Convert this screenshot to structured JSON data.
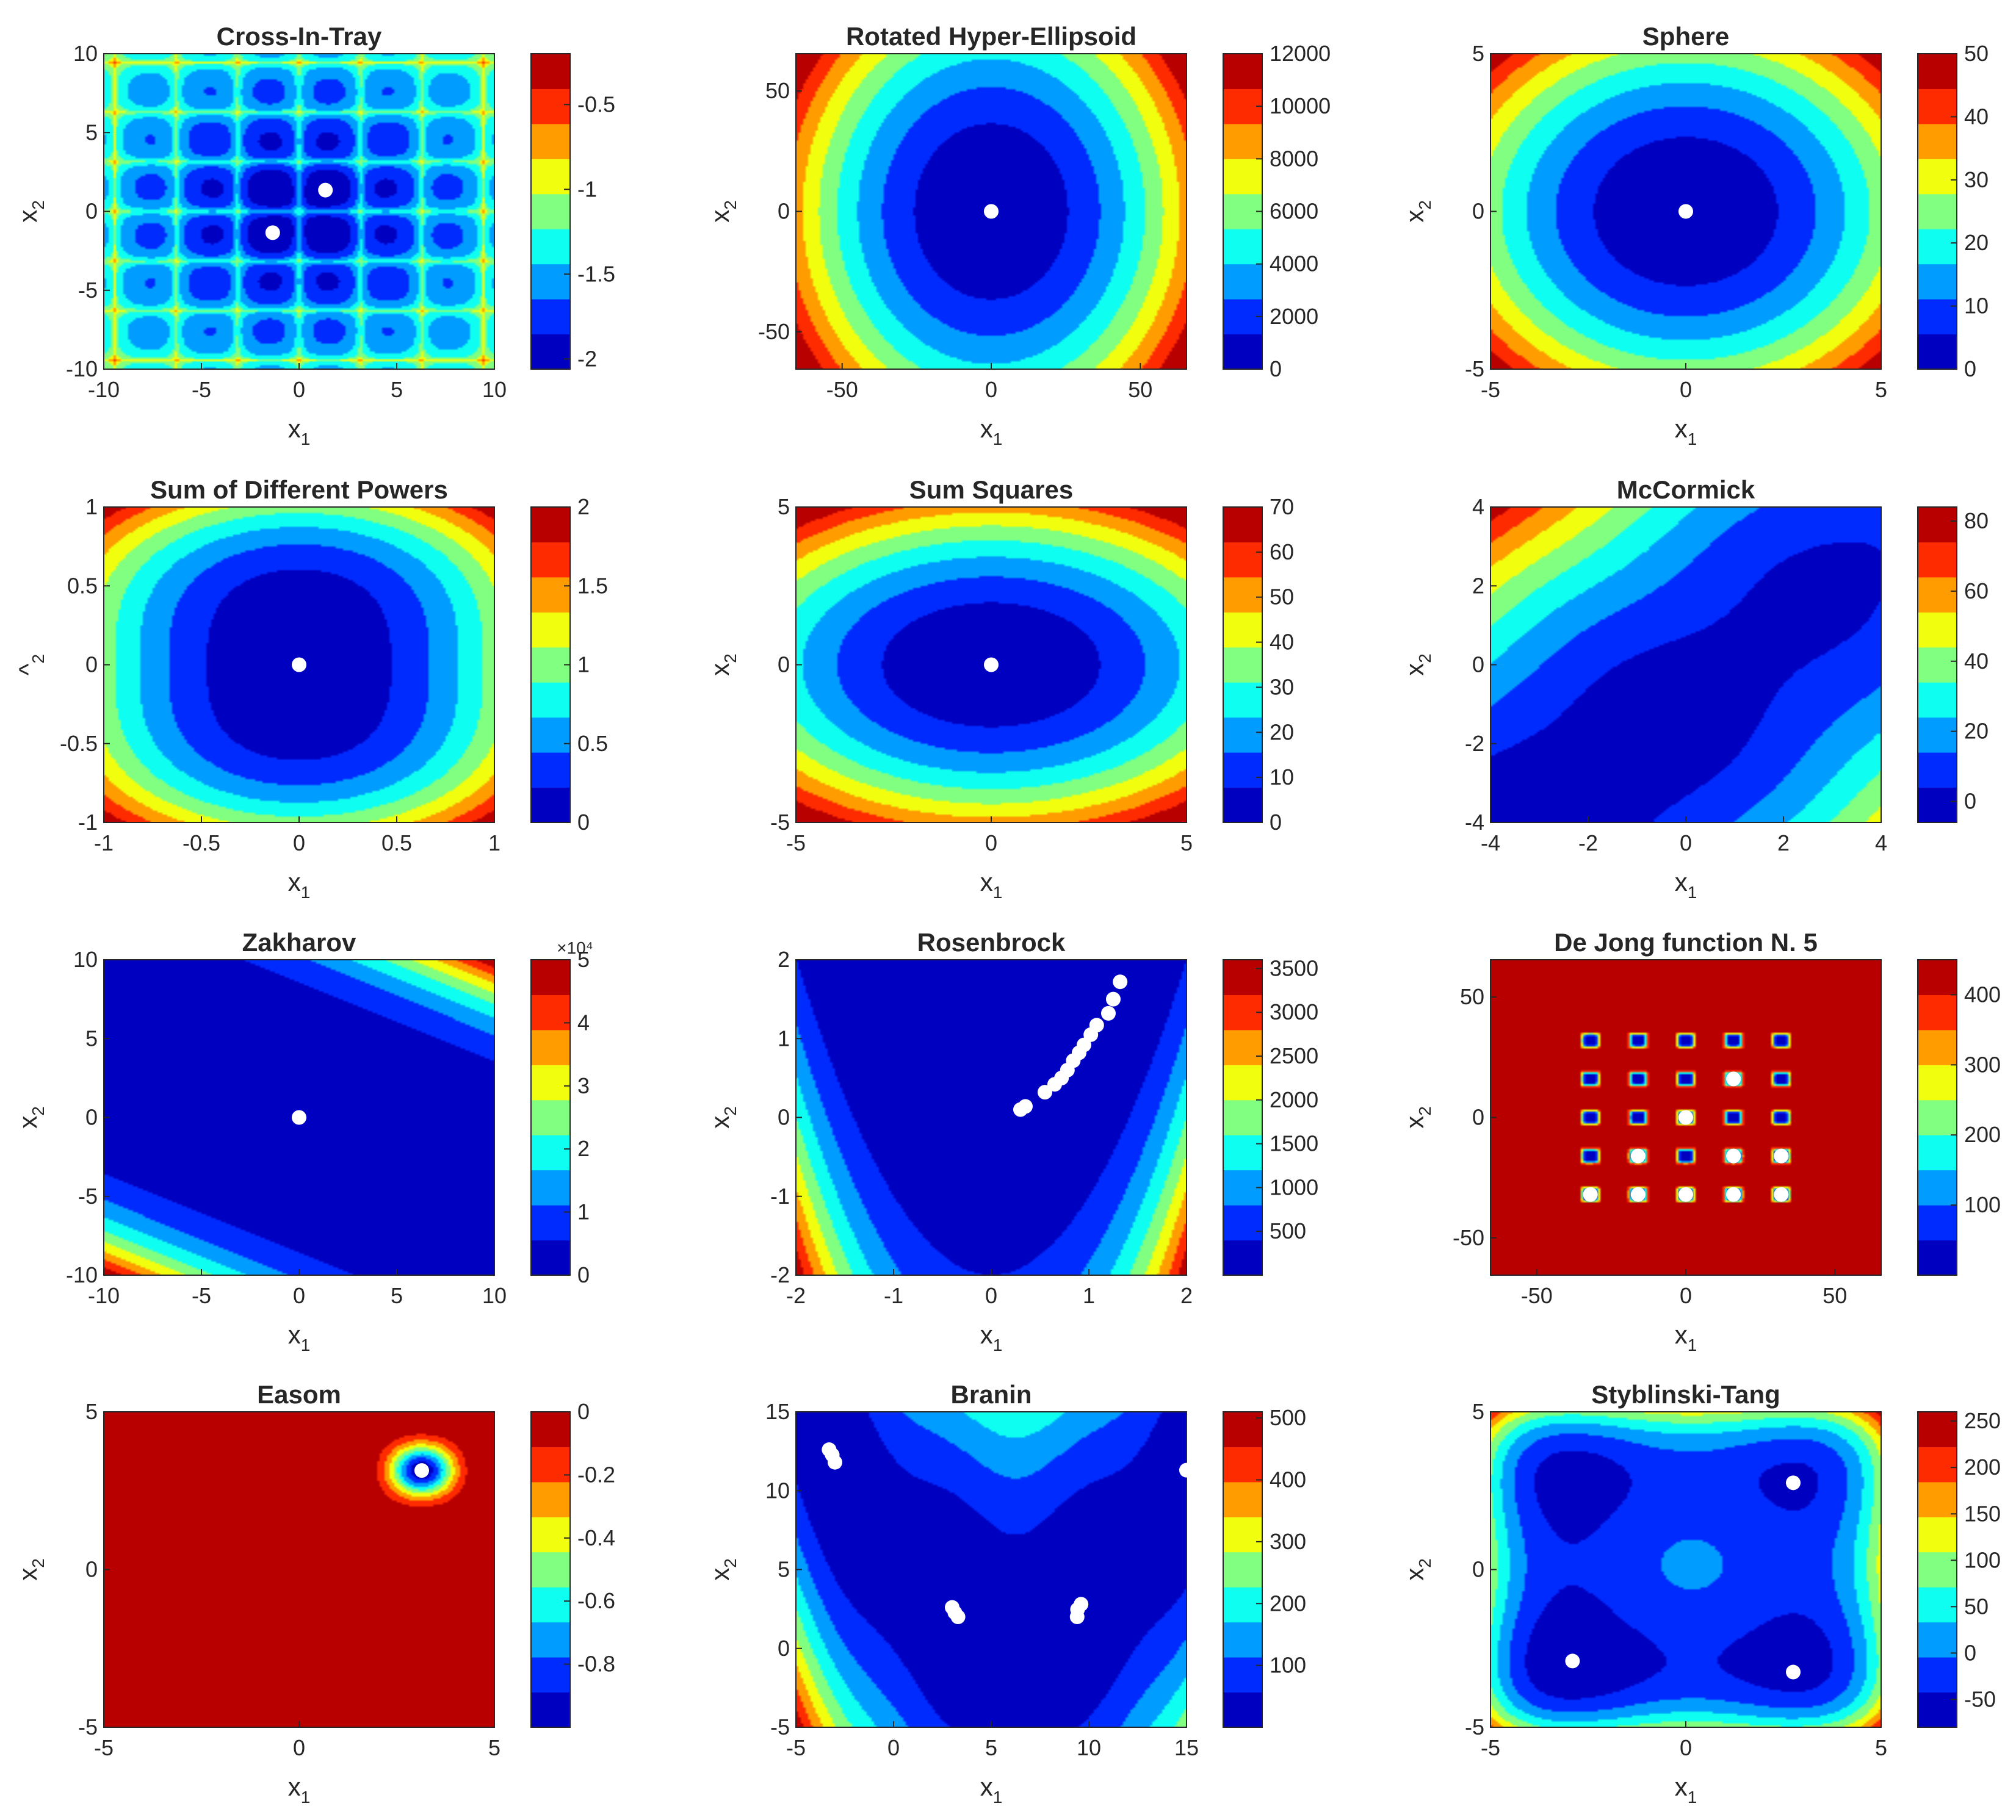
{
  "figure_title": "",
  "colormap": [
    "#00008f",
    "#0000ff",
    "#0080ff",
    "#00ffff",
    "#80ff80",
    "#ffff00",
    "#ff8000",
    "#ff0000",
    "#800000"
  ],
  "chart_data": [
    {
      "type": "contour",
      "name": "cross-in-tray",
      "title": "Cross-In-Tray",
      "xlabel": "x",
      "xsub": "1",
      "ylabel": "x",
      "ysub": "2",
      "xlim": [
        -10,
        10
      ],
      "ylim": [
        -10,
        10
      ],
      "xticks": [
        "-10",
        "-5",
        "0",
        "5",
        "10"
      ],
      "yticks": [
        "-10",
        "-5",
        "0",
        "5",
        "10"
      ],
      "cbar_range": [
        -2.06,
        -0.2
      ],
      "cbar_ticks": [
        "-2",
        "-1.5",
        "-1",
        "-0.5"
      ],
      "cbar_tick_values": [
        -2,
        -1.5,
        -1,
        -0.5
      ],
      "cbar_exponent": "",
      "points": [
        [
          1.35,
          1.35
        ],
        [
          -1.35,
          -1.35
        ]
      ]
    },
    {
      "type": "contour",
      "name": "rotated-hyper-ellipsoid",
      "title": "Rotated Hyper-Ellipsoid",
      "xlabel": "x",
      "xsub": "1",
      "ylabel": "x",
      "ysub": "2",
      "xlim": [
        -65.5,
        65.5
      ],
      "ylim": [
        -65.5,
        65.5
      ],
      "xticks": [
        "-50",
        "0",
        "50"
      ],
      "yticks": [
        "-50",
        "0",
        "50"
      ],
      "cbar_range": [
        0,
        12000
      ],
      "cbar_ticks": [
        "0",
        "2000",
        "4000",
        "6000",
        "8000",
        "10000",
        "12000"
      ],
      "cbar_tick_values": [
        0,
        2000,
        4000,
        6000,
        8000,
        10000,
        12000
      ],
      "cbar_exponent": "",
      "points": [
        [
          0,
          0
        ]
      ]
    },
    {
      "type": "contour",
      "name": "sphere",
      "title": "Sphere",
      "xlabel": "x",
      "xsub": "1",
      "ylabel": "x",
      "ysub": "2",
      "xlim": [
        -5,
        5
      ],
      "ylim": [
        -5,
        5
      ],
      "xticks": [
        "-5",
        "0",
        "5"
      ],
      "yticks": [
        "-5",
        "0",
        "5"
      ],
      "cbar_range": [
        0,
        50
      ],
      "cbar_ticks": [
        "0",
        "10",
        "20",
        "30",
        "40",
        "50"
      ],
      "cbar_tick_values": [
        0,
        10,
        20,
        30,
        40,
        50
      ],
      "cbar_exponent": "",
      "points": [
        [
          0,
          0
        ]
      ]
    },
    {
      "type": "contour",
      "name": "sum-of-different-powers",
      "title": "Sum of Different Powers",
      "xlabel": "x",
      "xsub": "1",
      "ylabel": "^",
      "ysub": "2",
      "xlim": [
        -1,
        1
      ],
      "ylim": [
        -1,
        1
      ],
      "xticks": [
        "-1",
        "-0.5",
        "0",
        "0.5",
        "1"
      ],
      "yticks": [
        "-1",
        "-0.5",
        "0",
        "0.5",
        "1"
      ],
      "cbar_range": [
        0,
        2
      ],
      "cbar_ticks": [
        "0",
        "0.5",
        "1",
        "1.5",
        "2"
      ],
      "cbar_tick_values": [
        0,
        0.5,
        1,
        1.5,
        2
      ],
      "cbar_exponent": "",
      "points": [
        [
          0,
          0
        ]
      ]
    },
    {
      "type": "contour",
      "name": "sum-squares",
      "title": "Sum Squares",
      "xlabel": "x",
      "xsub": "1",
      "ylabel": "x",
      "ysub": "2",
      "xlim": [
        -5,
        5
      ],
      "ylim": [
        -5,
        5
      ],
      "xticks": [
        "-5",
        "0",
        "5"
      ],
      "yticks": [
        "-5",
        "0",
        "5"
      ],
      "cbar_range": [
        0,
        70
      ],
      "cbar_ticks": [
        "0",
        "10",
        "20",
        "30",
        "40",
        "50",
        "60",
        "70"
      ],
      "cbar_tick_values": [
        0,
        10,
        20,
        30,
        40,
        50,
        60,
        70
      ],
      "cbar_exponent": "",
      "points": [
        [
          0,
          0
        ]
      ]
    },
    {
      "type": "contour",
      "name": "mccormick",
      "title": "McCormick",
      "xlabel": "x",
      "xsub": "1",
      "ylabel": "x",
      "ysub": "2",
      "xlim": [
        -4,
        4
      ],
      "ylim": [
        -4,
        4
      ],
      "xticks": [
        "-4",
        "-2",
        "0",
        "2",
        "4"
      ],
      "yticks": [
        "-4",
        "-2",
        "0",
        "2",
        "4"
      ],
      "cbar_range": [
        -6,
        84
      ],
      "cbar_ticks": [
        "0",
        "20",
        "40",
        "60",
        "80"
      ],
      "cbar_tick_values": [
        0,
        20,
        40,
        60,
        80
      ],
      "cbar_exponent": "",
      "points": []
    },
    {
      "type": "contour",
      "name": "zakharov",
      "title": "Zakharov",
      "xlabel": "x",
      "xsub": "1",
      "ylabel": "x",
      "ysub": "2",
      "xlim": [
        -10,
        10
      ],
      "ylim": [
        -10,
        10
      ],
      "xticks": [
        "-10",
        "-5",
        "0",
        "5",
        "10"
      ],
      "yticks": [
        "-10",
        "-5",
        "0",
        "5",
        "10"
      ],
      "cbar_range": [
        0,
        5
      ],
      "cbar_ticks": [
        "0",
        "1",
        "2",
        "3",
        "4",
        "5"
      ],
      "cbar_tick_values": [
        0,
        1,
        2,
        3,
        4,
        5
      ],
      "cbar_exponent": "×10⁴",
      "points": [
        [
          0,
          0
        ]
      ]
    },
    {
      "type": "contour",
      "name": "rosenbrock",
      "title": "Rosenbrock",
      "xlabel": "x",
      "xsub": "1",
      "ylabel": "x",
      "ysub": "2",
      "xlim": [
        -2,
        2
      ],
      "ylim": [
        -2,
        2
      ],
      "xticks": [
        "-2",
        "-1",
        "0",
        "1",
        "2"
      ],
      "yticks": [
        "-2",
        "-1",
        "0",
        "1",
        "2"
      ],
      "cbar_range": [
        0,
        3600
      ],
      "cbar_ticks": [
        "500",
        "1000",
        "1500",
        "2000",
        "2500",
        "3000",
        "3500"
      ],
      "cbar_tick_values": [
        500,
        1000,
        1500,
        2000,
        2500,
        3000,
        3500
      ],
      "cbar_exponent": "",
      "points": [
        [
          0.3,
          0.1
        ],
        [
          0.35,
          0.14
        ],
        [
          0.55,
          0.32
        ],
        [
          0.65,
          0.42
        ],
        [
          0.72,
          0.5
        ],
        [
          0.78,
          0.6
        ],
        [
          0.84,
          0.72
        ],
        [
          0.9,
          0.82
        ],
        [
          0.95,
          0.92
        ],
        [
          1.02,
          1.05
        ],
        [
          1.08,
          1.17
        ],
        [
          1.2,
          1.32
        ],
        [
          1.25,
          1.5
        ],
        [
          1.32,
          1.72
        ]
      ]
    },
    {
      "type": "contour",
      "name": "de-jong-n5",
      "title": "De Jong function N. 5",
      "xlabel": "x",
      "xsub": "1",
      "ylabel": "x",
      "ysub": "2",
      "xlim": [
        -65.5,
        65.5
      ],
      "ylim": [
        -65.5,
        65.5
      ],
      "xticks": [
        "-50",
        "0",
        "50"
      ],
      "yticks": [
        "-50",
        "0",
        "50"
      ],
      "cbar_range": [
        0,
        450
      ],
      "cbar_ticks": [
        "100",
        "200",
        "300",
        "400"
      ],
      "cbar_tick_values": [
        100,
        200,
        300,
        400
      ],
      "cbar_exponent": "",
      "points": [
        [
          -32,
          -32
        ],
        [
          -16,
          -32
        ],
        [
          0,
          -32
        ],
        [
          16,
          -32
        ],
        [
          32,
          -32
        ],
        [
          -16,
          -16
        ],
        [
          16,
          -16
        ],
        [
          32,
          -16
        ],
        [
          0,
          0
        ],
        [
          16,
          16
        ]
      ]
    },
    {
      "type": "contour",
      "name": "easom",
      "title": "Easom",
      "xlabel": "x",
      "xsub": "1",
      "ylabel": "x",
      "ysub": "2",
      "xlim": [
        -5,
        5
      ],
      "ylim": [
        -5,
        5
      ],
      "xticks": [
        "-5",
        "0",
        "5"
      ],
      "yticks": [
        "-5",
        "0",
        "5"
      ],
      "cbar_range": [
        -1,
        0
      ],
      "cbar_ticks": [
        "-0.8",
        "-0.6",
        "-0.4",
        "-0.2",
        "0"
      ],
      "cbar_tick_values": [
        -0.8,
        -0.6,
        -0.4,
        -0.2,
        0
      ],
      "cbar_exponent": "",
      "points": [
        [
          3.14,
          3.14
        ]
      ]
    },
    {
      "type": "contour",
      "name": "branin",
      "title": "Branin",
      "xlabel": "x",
      "xsub": "1",
      "ylabel": "x",
      "ysub": "2",
      "xlim": [
        -5,
        15
      ],
      "ylim": [
        -5,
        15
      ],
      "xticks": [
        "-5",
        "0",
        "5",
        "10",
        "15"
      ],
      "yticks": [
        "-5",
        "0",
        "5",
        "10",
        "15"
      ],
      "cbar_range": [
        0,
        510
      ],
      "cbar_ticks": [
        "100",
        "200",
        "300",
        "400",
        "500"
      ],
      "cbar_tick_values": [
        100,
        200,
        300,
        400,
        500
      ],
      "cbar_exponent": "",
      "points": [
        [
          -3.14,
          12.27
        ],
        [
          -3.0,
          11.8
        ],
        [
          -3.3,
          12.6
        ],
        [
          3.14,
          2.27
        ],
        [
          3.3,
          2.0
        ],
        [
          3.0,
          2.6
        ],
        [
          9.42,
          2.47
        ],
        [
          9.6,
          2.8
        ],
        [
          9.4,
          2.0
        ],
        [
          15,
          11.3
        ]
      ]
    },
    {
      "type": "contour",
      "name": "styblinski-tang",
      "title": "Styblinski-Tang",
      "xlabel": "x",
      "xsub": "1",
      "ylabel": "x",
      "ysub": "2",
      "xlim": [
        -5,
        5
      ],
      "ylim": [
        -5,
        5
      ],
      "xticks": [
        "-5",
        "0",
        "5"
      ],
      "yticks": [
        "-5",
        "0",
        "5"
      ],
      "cbar_range": [
        -80,
        260
      ],
      "cbar_ticks": [
        "-50",
        "0",
        "50",
        "100",
        "150",
        "200",
        "250"
      ],
      "cbar_tick_values": [
        -50,
        0,
        50,
        100,
        150,
        200,
        250
      ],
      "cbar_exponent": "",
      "points": [
        [
          2.75,
          2.75
        ],
        [
          -2.9,
          -2.9
        ],
        [
          2.75,
          -3.25
        ]
      ]
    }
  ]
}
